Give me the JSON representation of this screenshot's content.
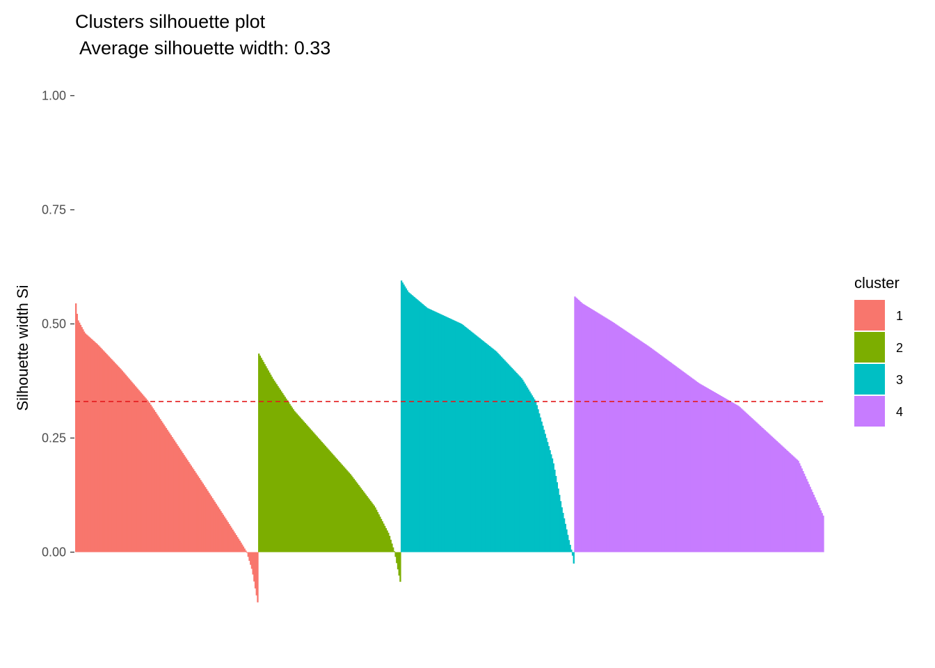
{
  "chart_data": {
    "type": "bar",
    "title": "Clusters silhouette plot",
    "subtitle": " Average silhouette width: 0.33",
    "xlabel": "",
    "ylabel": "Silhouette width Si",
    "ylim": [
      -0.15,
      1.0
    ],
    "yticks": [
      "0.00",
      "0.25",
      "0.50",
      "0.75",
      "1.00"
    ],
    "ytick_values": [
      0.0,
      0.25,
      0.5,
      0.75,
      1.0
    ],
    "grid": false,
    "legend_title": "cluster",
    "legend_position": "right",
    "average_line": {
      "value": 0.33,
      "color": "#e41a1c",
      "style": "dashed"
    },
    "series": [
      {
        "name": "1",
        "color": "#F8766D",
        "count": 154,
        "profile": [
          [
            0,
            0.545
          ],
          [
            0.01,
            0.51
          ],
          [
            0.05,
            0.48
          ],
          [
            0.12,
            0.455
          ],
          [
            0.25,
            0.4
          ],
          [
            0.4,
            0.33
          ],
          [
            0.55,
            0.24
          ],
          [
            0.7,
            0.15
          ],
          [
            0.83,
            0.07
          ],
          [
            0.91,
            0.02
          ],
          [
            0.94,
            0.0
          ],
          [
            0.97,
            -0.04
          ],
          [
            1.0,
            -0.11
          ]
        ]
      },
      {
        "name": "2",
        "color": "#7CAE00",
        "count": 120,
        "profile": [
          [
            0,
            0.435
          ],
          [
            0.1,
            0.38
          ],
          [
            0.25,
            0.31
          ],
          [
            0.45,
            0.24
          ],
          [
            0.65,
            0.17
          ],
          [
            0.82,
            0.1
          ],
          [
            0.92,
            0.04
          ],
          [
            0.96,
            0.0
          ],
          [
            1.0,
            -0.065
          ]
        ]
      },
      {
        "name": "3",
        "color": "#00BFC4",
        "count": 146,
        "profile": [
          [
            0,
            0.595
          ],
          [
            0.04,
            0.57
          ],
          [
            0.15,
            0.535
          ],
          [
            0.35,
            0.5
          ],
          [
            0.55,
            0.44
          ],
          [
            0.7,
            0.38
          ],
          [
            0.78,
            0.33
          ],
          [
            0.88,
            0.2
          ],
          [
            0.93,
            0.1
          ],
          [
            0.97,
            0.03
          ],
          [
            0.99,
            0.0
          ],
          [
            1.0,
            -0.025
          ]
        ]
      },
      {
        "name": "4",
        "color": "#C77CFF",
        "count": 210,
        "profile": [
          [
            0,
            0.56
          ],
          [
            0.03,
            0.545
          ],
          [
            0.15,
            0.505
          ],
          [
            0.3,
            0.45
          ],
          [
            0.5,
            0.37
          ],
          [
            0.66,
            0.32
          ],
          [
            0.8,
            0.25
          ],
          [
            0.9,
            0.2
          ],
          [
            0.95,
            0.14
          ],
          [
            1.0,
            0.08
          ]
        ]
      }
    ]
  }
}
